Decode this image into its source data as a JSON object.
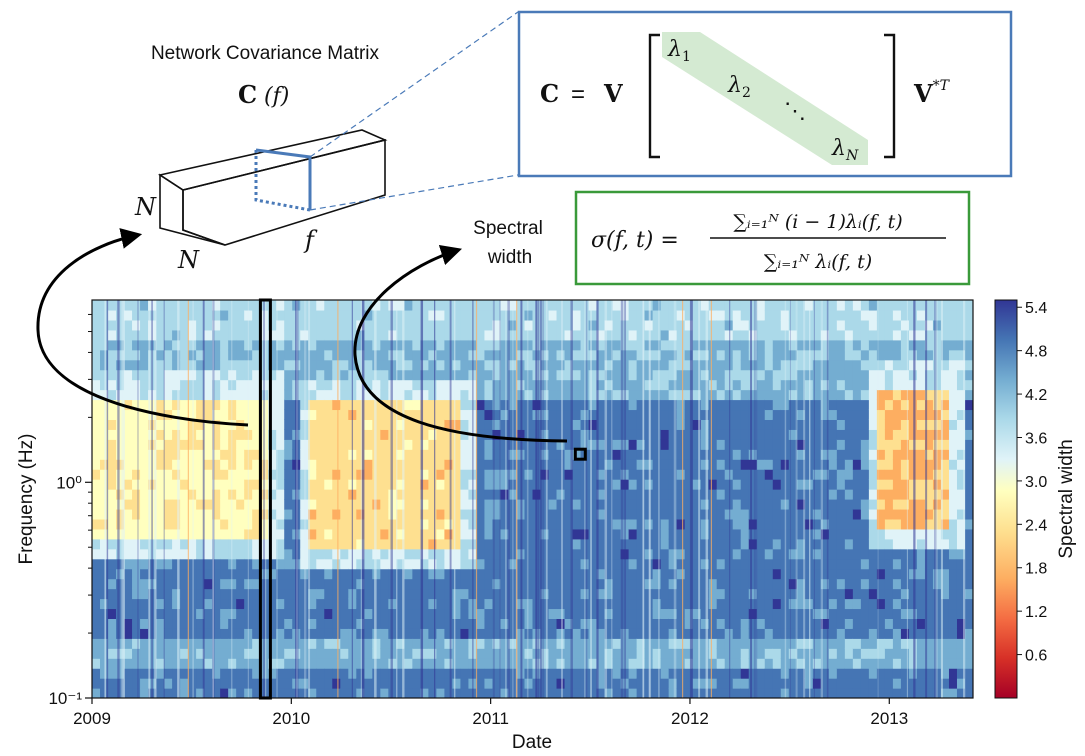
{
  "header": {
    "matrix_title": "Network Covariance Matrix",
    "matrix_symbol_C": "C",
    "matrix_symbol_f": "(f)",
    "box_N_side": "N",
    "box_N_bottom": "N",
    "box_f": "f"
  },
  "eigen_box": {
    "lhs": "C",
    "eq": "=",
    "V": "V",
    "lambda1": "λ",
    "sub1": "1",
    "lambda2": "λ",
    "sub2": "2",
    "dots": "⋱",
    "lambdaN": "λ",
    "subN": "N",
    "rhs": "V",
    "rhs_sup": "*T"
  },
  "spectral_box": {
    "label_line1": "Spectral",
    "label_line2": "width",
    "lhs": "σ(f, t) =",
    "numerator": "∑ᵢ₌₁ᴺ (i − 1)λᵢ(f, t)",
    "denominator": "∑ᵢ₌₁ᴺ λᵢ(f, t)"
  },
  "colors": {
    "blue_box": "#4a7ab8",
    "green_box": "#3a9a3a",
    "diag_fill": "#d4ead2",
    "cmap": [
      "#a50026",
      "#d73027",
      "#f46d43",
      "#fdae61",
      "#fee090",
      "#ffffbf",
      "#e0f3f8",
      "#abd9e9",
      "#74add1",
      "#4575b4",
      "#313695"
    ]
  },
  "chart_data": {
    "type": "heatmap",
    "xlabel": "Date",
    "ylabel": "Frequency (Hz)",
    "x_ticks": [
      "2009",
      "2010",
      "2011",
      "2012",
      "2013"
    ],
    "x_range": [
      2009.0,
      2013.42
    ],
    "y_scale": "log",
    "y_ticks": [
      "10⁻¹",
      "10⁰"
    ],
    "y_range": [
      0.1,
      7.0
    ],
    "colorbar": {
      "label": "Spectral width",
      "ticks": [
        "0.6",
        "1.2",
        "1.8",
        "2.4",
        "3.0",
        "3.6",
        "4.2",
        "4.8",
        "5.4"
      ],
      "range": [
        0.0,
        5.5
      ]
    },
    "regions": [
      {
        "x": [
          2009.0,
          2009.9
        ],
        "f": [
          0.55,
          2.5
        ],
        "value": 2.6
      },
      {
        "x": [
          2010.1,
          2010.85
        ],
        "f": [
          0.5,
          2.3
        ],
        "value": 2.2
      },
      {
        "x": [
          2012.95,
          2013.3
        ],
        "f": [
          0.62,
          2.8
        ],
        "value": 1.9
      }
    ],
    "background_value": 4.9,
    "highlight_column_date": 2009.87,
    "highlight_point": {
      "date": 2011.45,
      "f": 1.35
    }
  }
}
